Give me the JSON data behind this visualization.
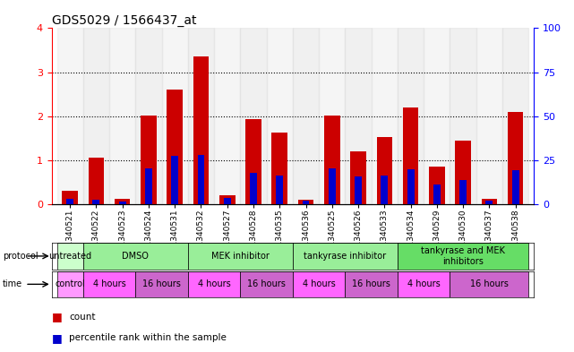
{
  "title": "GDS5029 / 1566437_at",
  "samples": [
    "GSM1340521",
    "GSM1340522",
    "GSM1340523",
    "GSM1340524",
    "GSM1340531",
    "GSM1340532",
    "GSM1340527",
    "GSM1340528",
    "GSM1340535",
    "GSM1340536",
    "GSM1340525",
    "GSM1340526",
    "GSM1340533",
    "GSM1340534",
    "GSM1340529",
    "GSM1340530",
    "GSM1340537",
    "GSM1340538"
  ],
  "red_values": [
    0.3,
    1.05,
    0.12,
    2.02,
    2.6,
    3.35,
    0.2,
    1.93,
    1.62,
    0.1,
    2.02,
    1.2,
    1.52,
    2.2,
    0.85,
    1.45,
    0.12,
    2.1
  ],
  "blue_values": [
    0.12,
    0.1,
    0.05,
    0.82,
    1.1,
    1.12,
    0.15,
    0.72,
    0.65,
    0.08,
    0.82,
    0.62,
    0.65,
    0.8,
    0.45,
    0.55,
    0.08,
    0.78
  ],
  "ylim_left": [
    0,
    4
  ],
  "ylim_right": [
    0,
    100
  ],
  "yticks_left": [
    0,
    1,
    2,
    3,
    4
  ],
  "yticks_right": [
    0,
    25,
    50,
    75,
    100
  ],
  "bar_color_red": "#cc0000",
  "bar_color_blue": "#0000cc",
  "bar_width": 0.6,
  "proto_defs": [
    [
      0,
      1,
      "untreated",
      "#ccffcc"
    ],
    [
      1,
      5,
      "DMSO",
      "#99ee99"
    ],
    [
      5,
      9,
      "MEK inhibitor",
      "#99ee99"
    ],
    [
      9,
      13,
      "tankyrase inhibitor",
      "#99ee99"
    ],
    [
      13,
      18,
      "tankyrase and MEK\ninhibitors",
      "#66dd66"
    ]
  ],
  "time_defs": [
    [
      0,
      1,
      "control",
      "#ff99ff"
    ],
    [
      1,
      3,
      "4 hours",
      "#ff66ff"
    ],
    [
      3,
      5,
      "16 hours",
      "#cc66cc"
    ],
    [
      5,
      7,
      "4 hours",
      "#ff66ff"
    ],
    [
      7,
      9,
      "16 hours",
      "#cc66cc"
    ],
    [
      9,
      11,
      "4 hours",
      "#ff66ff"
    ],
    [
      11,
      13,
      "16 hours",
      "#cc66cc"
    ],
    [
      13,
      15,
      "4 hours",
      "#ff66ff"
    ],
    [
      15,
      18,
      "16 hours",
      "#cc66cc"
    ]
  ],
  "grid_color": "black",
  "left_axis_color": "red",
  "right_axis_color": "blue",
  "legend_label_red": "count",
  "legend_label_blue": "percentile rank within the sample",
  "protocol_row_label": "protocol",
  "time_row_label": "time"
}
